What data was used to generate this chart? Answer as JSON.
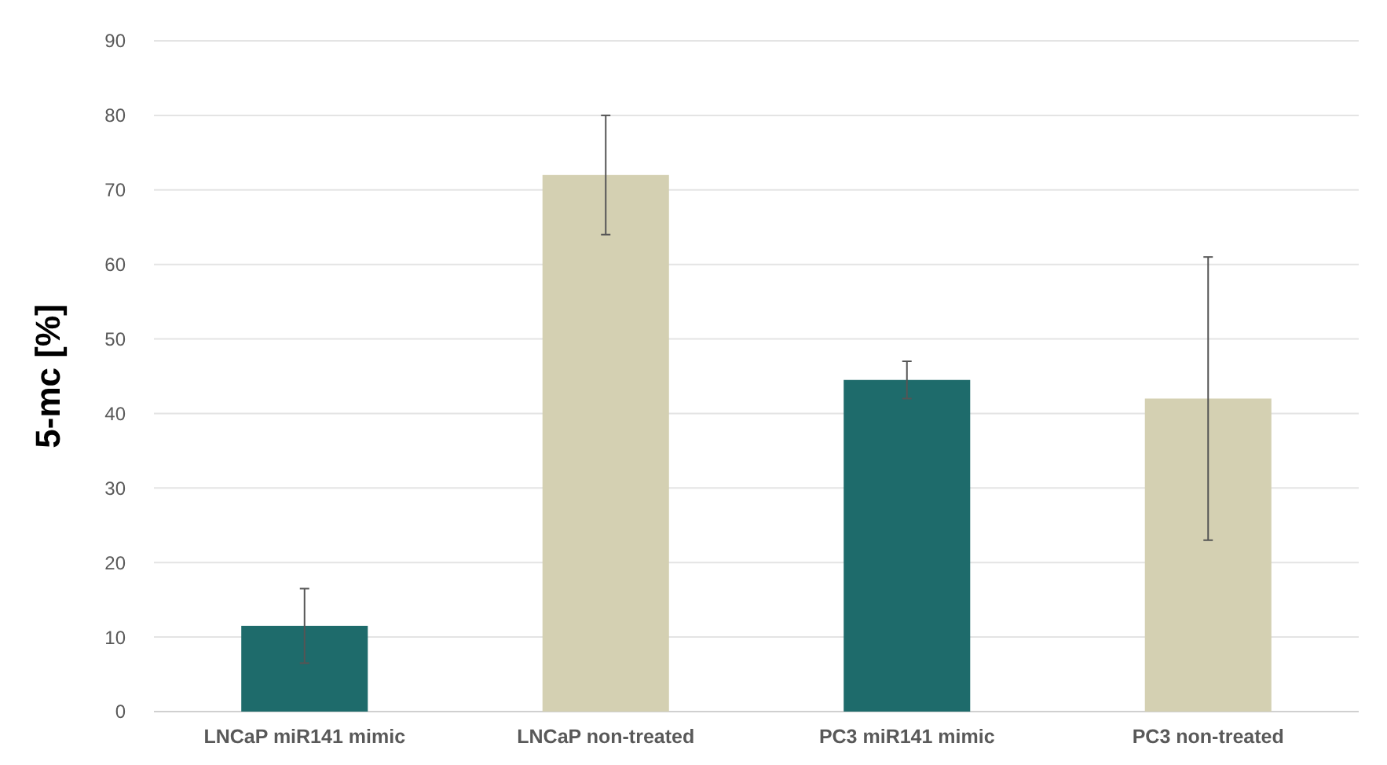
{
  "chart_data": {
    "type": "bar",
    "ylabel": "5-mc [%]",
    "categories": [
      "LNCaP miR141 mimic",
      "LNCaP non-treated",
      "PC3 miR141 mimic",
      "PC3 non-treated"
    ],
    "values": [
      11.5,
      72,
      44.5,
      42
    ],
    "colors": [
      "#1e6b6b",
      "#d4d0b2",
      "#1e6b6b",
      "#d4d0b2"
    ],
    "errors": [
      5,
      8,
      2.5,
      19
    ],
    "ylim": [
      0,
      90
    ],
    "yticks": [
      0,
      10,
      20,
      30,
      40,
      50,
      60,
      70,
      80,
      90
    ],
    "grid": "y"
  }
}
